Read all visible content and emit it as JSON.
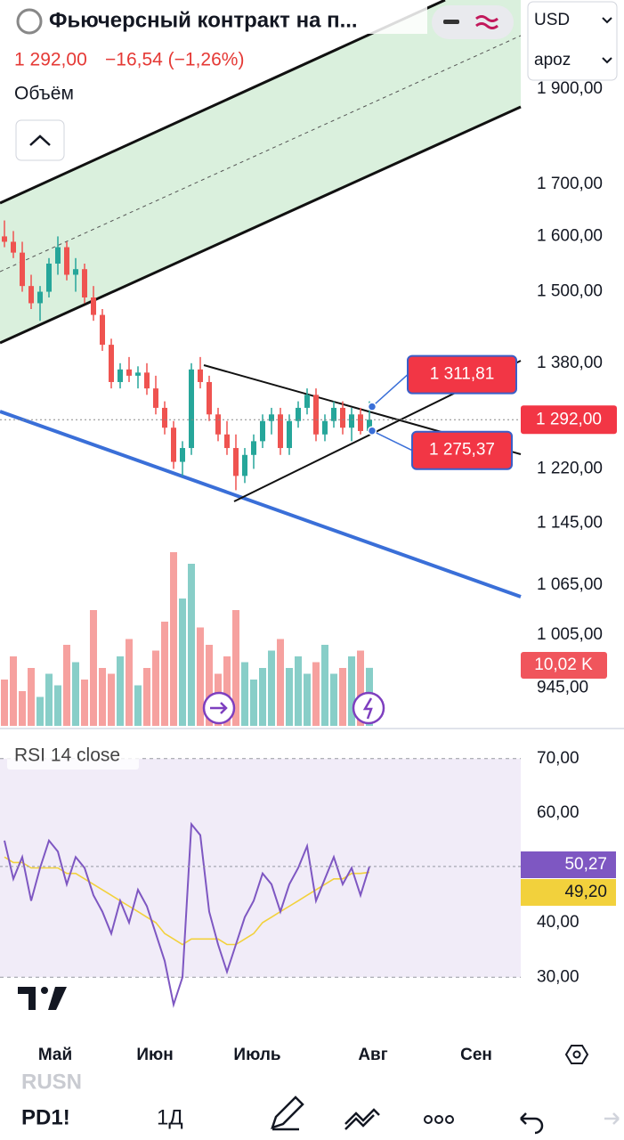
{
  "header": {
    "title": "Фьючерсный контракт на п...",
    "price": "1 292,00",
    "change": "−16,54 (−1,26%)",
    "currency": "USD",
    "account": "apoz"
  },
  "chart_data": [
    {
      "type": "candlestick",
      "volume_name": "Объём",
      "categories": [
        null,
        null,
        null,
        null,
        null,
        null,
        null,
        null,
        null,
        null,
        null,
        null,
        null,
        null,
        null,
        null,
        null,
        null,
        null,
        null,
        null,
        null,
        null,
        null,
        null,
        null,
        null,
        null,
        null,
        null,
        null,
        null,
        null,
        null,
        null,
        null,
        null,
        null,
        null,
        null,
        null,
        null
      ],
      "open": [
        1600,
        1590,
        1570,
        1510,
        1480,
        1500,
        1550,
        1580,
        1530,
        1540,
        1490,
        1460,
        1410,
        1350,
        1370,
        1360,
        1365,
        1340,
        1310,
        1280,
        1230,
        1250,
        1370,
        1350,
        1300,
        1270,
        1250,
        1210,
        1240,
        1260,
        1290,
        1300,
        1250,
        1290,
        1310,
        1330,
        1270,
        1290,
        1310,
        1280,
        1300,
        1275
      ],
      "high": [
        1630,
        1610,
        1590,
        1530,
        1510,
        1560,
        1600,
        1590,
        1560,
        1550,
        1510,
        1470,
        1420,
        1380,
        1390,
        1375,
        1380,
        1360,
        1320,
        1290,
        1260,
        1380,
        1390,
        1360,
        1310,
        1290,
        1270,
        1250,
        1270,
        1300,
        1310,
        1310,
        1300,
        1320,
        1340,
        1340,
        1300,
        1320,
        1320,
        1310,
        1310,
        1320
      ],
      "low": [
        1580,
        1560,
        1500,
        1470,
        1450,
        1490,
        1530,
        1520,
        1500,
        1480,
        1450,
        1400,
        1340,
        1340,
        1350,
        1340,
        1330,
        1300,
        1270,
        1220,
        1210,
        1240,
        1340,
        1290,
        1260,
        1240,
        1190,
        1200,
        1220,
        1250,
        1270,
        1240,
        1240,
        1280,
        1300,
        1260,
        1260,
        1280,
        1270,
        1260,
        1270,
        1270
      ],
      "close": [
        1590,
        1570,
        1510,
        1480,
        1500,
        1550,
        1580,
        1530,
        1540,
        1490,
        1460,
        1410,
        1350,
        1370,
        1360,
        1365,
        1340,
        1310,
        1280,
        1230,
        1250,
        1370,
        1350,
        1300,
        1270,
        1250,
        1210,
        1240,
        1260,
        1290,
        1300,
        1250,
        1290,
        1310,
        1330,
        1270,
        1290,
        1310,
        1280,
        1300,
        1275,
        1292
      ],
      "volume": [
        8,
        12,
        6,
        10,
        5,
        9,
        7,
        14,
        11,
        8,
        20,
        10,
        9,
        12,
        15,
        7,
        10,
        13,
        18,
        30,
        22,
        28,
        17,
        14,
        9,
        12,
        20,
        11,
        8,
        10,
        13,
        15,
        10,
        12,
        9,
        11,
        14,
        9,
        10,
        12,
        13,
        10.02
      ],
      "volume_lim": [
        0,
        40
      ],
      "up_color": "#26a69a",
      "down_color": "#ef5350",
      "last_label": "1 292,00",
      "volume_last_label": "10,02 K",
      "log": true,
      "ylim": [
        904,
        2108
      ],
      "yticks": [
        {
          "value": 945,
          "label": "945,00"
        },
        {
          "value": 1005,
          "label": "1 005,00"
        },
        {
          "value": 1065,
          "label": "1 065,00"
        },
        {
          "value": 1145,
          "label": "1 145,00"
        },
        {
          "value": 1220,
          "label": "1 220,00"
        },
        {
          "value": 1380,
          "label": "1 380,00"
        },
        {
          "value": 1500,
          "label": "1 500,00"
        },
        {
          "value": 1600,
          "label": "1 600,00"
        },
        {
          "value": 1700,
          "label": "1 700,00"
        },
        {
          "value": 1900,
          "label": "1 900,00"
        }
      ],
      "xlim": [
        -0.5,
        57.5
      ],
      "xticks": [
        {
          "value": 5.7,
          "label": "Май"
        },
        {
          "value": 16.9,
          "label": "Июн"
        },
        {
          "value": 28.4,
          "label": "Июль"
        },
        {
          "value": 41.4,
          "label": "Авг"
        },
        {
          "value": 53,
          "label": "Сен"
        }
      ],
      "annotations": [
        {
          "value": 1311.81,
          "label": "1 311,81"
        },
        {
          "value": 1275.37,
          "label": "1 275,37"
        }
      ]
    },
    {
      "type": "line",
      "title": "RSI 14 close",
      "series": [
        {
          "color": "#7e57c2",
          "last_label": "50,27",
          "values": [
            55,
            48,
            52,
            44,
            50,
            55,
            53,
            47,
            52,
            50,
            45,
            42,
            38,
            44,
            40,
            46,
            43,
            38,
            33,
            25,
            30,
            58,
            56,
            42,
            36,
            31,
            36,
            41,
            44,
            49,
            47,
            42,
            47,
            50,
            54,
            44,
            48,
            52,
            47,
            50,
            45,
            50.27
          ]
        },
        {
          "color": "#f2d13c",
          "last_label": "49,20",
          "values": [
            52,
            51,
            51,
            50,
            50,
            50,
            50,
            49,
            49,
            48,
            47,
            46,
            45,
            44,
            43,
            42,
            41,
            40,
            38,
            37,
            36,
            37,
            37,
            37,
            37,
            36,
            36,
            37,
            38,
            40,
            41,
            42,
            43,
            44,
            45,
            46,
            47,
            48,
            48,
            49,
            49,
            49.2
          ]
        }
      ],
      "ylim": [
        20.6,
        75.5
      ],
      "yticks": [
        {
          "value": 30,
          "label": "30,00"
        },
        {
          "value": 40,
          "label": "40,00"
        },
        {
          "value": 60,
          "label": "60,00"
        },
        {
          "value": 70,
          "label": "70,00"
        }
      ]
    }
  ],
  "toolbar": {
    "ticker": "RUSN",
    "symbol": "PD1!",
    "interval": "1Д"
  }
}
